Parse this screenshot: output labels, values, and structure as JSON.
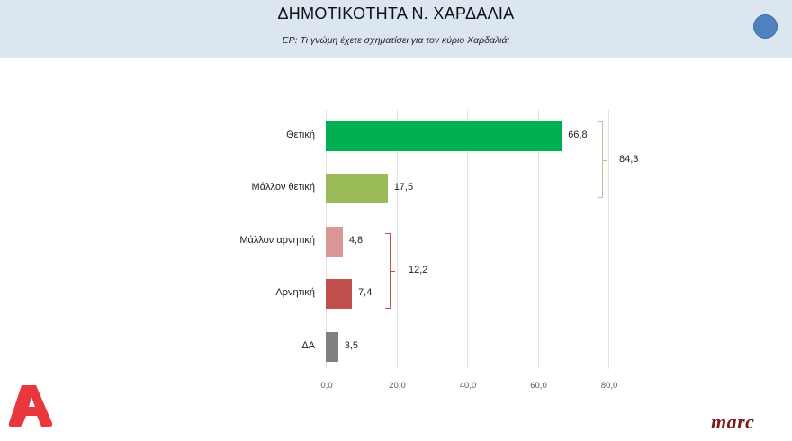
{
  "header": {
    "title": "ΔΗΜΟΤΙΚΟΤΗΤΑ Ν. ΧΑΡΔΑΛΙΑ",
    "subtitle": "ΕΡ: Τι γνώμη έχετε σχηματίσει για τον κύριο Χαρδαλιά;"
  },
  "colors": {
    "header_bg": "#dce6f1",
    "accent_circle": "#4f81bd",
    "positive": "#00b050",
    "rather_positive": "#9bbb59",
    "rather_negative": "#d99694",
    "negative": "#c0504d",
    "dk": "#808080"
  },
  "chart_data": {
    "type": "bar",
    "orientation": "horizontal",
    "title": "ΔΗΜΟΤΙΚΟΤΗΤΑ Ν. ΧΑΡΔΑΛΙΑ",
    "subtitle": "ΕΡ: Τι γνώμη έχετε σχηματίσει για τον κύριο Χαρδαλιά;",
    "categories": [
      "Θετική",
      "Μάλλον θετική",
      "Μάλλον αρνητική",
      "Αρνητική",
      "ΔΑ"
    ],
    "values": [
      66.8,
      17.5,
      4.8,
      7.4,
      3.5
    ],
    "value_labels": [
      "66,8",
      "17,5",
      "4,8",
      "7,4",
      "3,5"
    ],
    "bar_colors": [
      "#00b050",
      "#9bbb59",
      "#d99694",
      "#c0504d",
      "#808080"
    ],
    "xlim": [
      0,
      80
    ],
    "x_ticks": [
      "0,0",
      "20,0",
      "40,0",
      "60,0",
      "80,0"
    ],
    "grid": true,
    "xlabel": "",
    "ylabel": "",
    "annotations": [
      {
        "type": "bracket",
        "covers": [
          "Θετική",
          "Μάλλον θετική"
        ],
        "value": 84.3,
        "label": "84,3",
        "color": "#c4bd97"
      },
      {
        "type": "bracket",
        "covers": [
          "Μάλλον αρνητική",
          "Αρνητική"
        ],
        "value": 12.2,
        "label": "12,2",
        "color": "#c0504d"
      }
    ]
  },
  "logos": {
    "left": "Alpha",
    "right": "marc"
  }
}
